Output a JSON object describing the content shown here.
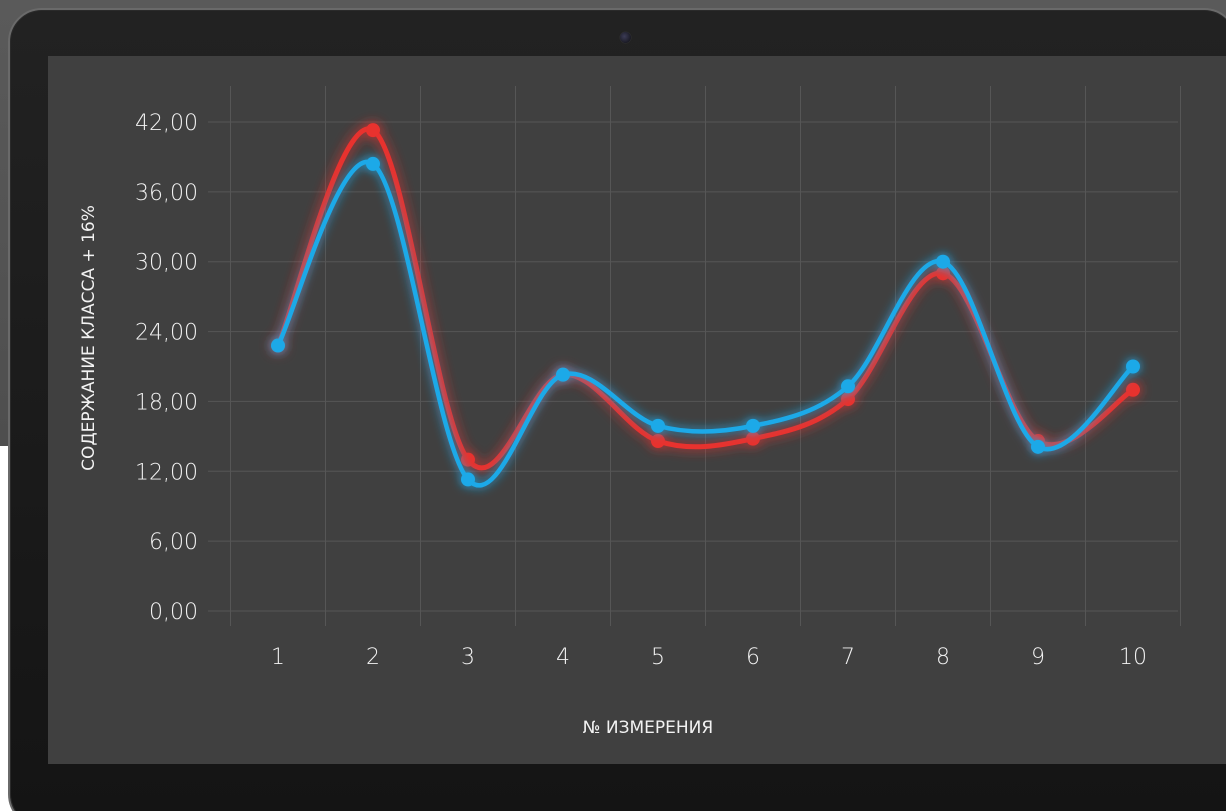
{
  "chart_data": {
    "type": "line",
    "x": [
      1,
      2,
      3,
      4,
      5,
      6,
      7,
      8,
      9,
      10
    ],
    "series": [
      {
        "color": "#e8302f",
        "values": [
          22.8,
          41.3,
          13.0,
          20.3,
          14.6,
          14.8,
          18.2,
          29.0,
          14.6,
          19.0
        ]
      },
      {
        "color": "#1fa9e8",
        "values": [
          22.8,
          38.4,
          11.3,
          20.3,
          15.9,
          15.9,
          19.3,
          30.0,
          14.1,
          21.0
        ]
      }
    ],
    "yticks": [
      "0,00",
      "6,00",
      "12,00",
      "18,00",
      "24,00",
      "30,00",
      "36,00",
      "42,00"
    ],
    "xticks": [
      "1",
      "2",
      "3",
      "4",
      "5",
      "6",
      "7",
      "8",
      "9",
      "10"
    ],
    "ylim": [
      0,
      42
    ],
    "xlabel": "№ ИЗМЕРЕНИЯ",
    "ylabel": "СОДЕРЖАНИЕ КЛАССА + 16%",
    "grid": true
  },
  "colors": {
    "screen_background": "#404040",
    "grid": "#565656",
    "text": "#f2f2f2"
  }
}
